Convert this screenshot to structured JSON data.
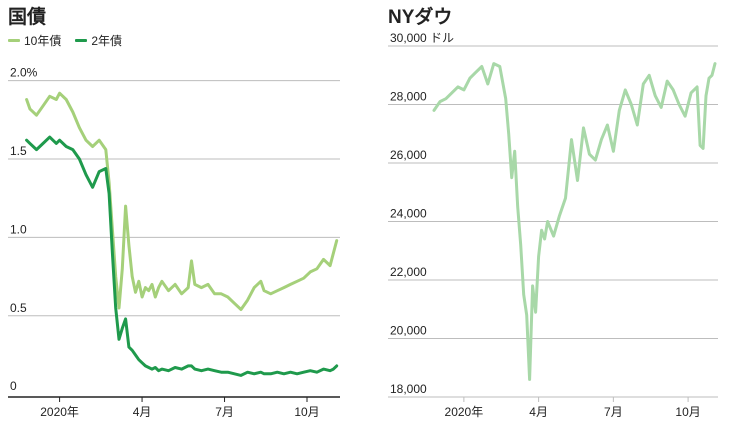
{
  "colors": {
    "yield10": "#a5d07a",
    "yield2": "#1f9a4c",
    "dow": "#a8d8a8",
    "grid": "#bdbdbd",
    "axis": "#222222"
  },
  "chart_data": [
    {
      "type": "line",
      "title": "国債",
      "xlabel": "",
      "ylabel": "",
      "y_tick_labels": [
        "0",
        "0.5",
        "1.0",
        "1.5",
        "2.0%"
      ],
      "y_ticks": [
        0,
        0.5,
        1.0,
        1.5,
        2.0
      ],
      "ylim": [
        -0.05,
        2.1
      ],
      "x_tick_labels": [
        "2020年",
        "4月",
        "7月",
        "10月"
      ],
      "x_ticks": [
        2020.0,
        2020.25,
        2020.5,
        2020.75
      ],
      "xlim": [
        2019.88,
        2020.85
      ],
      "grid": true,
      "legend_position": "top-left",
      "series": [
        {
          "name": "10年債",
          "color_key": "yield10",
          "x": [
            2019.9,
            2019.91,
            2019.93,
            2019.95,
            2019.97,
            2019.99,
            2020.0,
            2020.02,
            2020.04,
            2020.06,
            2020.08,
            2020.1,
            2020.12,
            2020.14,
            2020.15,
            2020.16,
            2020.17,
            2020.18,
            2020.19,
            2020.2,
            2020.21,
            2020.22,
            2020.23,
            2020.24,
            2020.25,
            2020.26,
            2020.27,
            2020.28,
            2020.29,
            2020.3,
            2020.31,
            2020.33,
            2020.35,
            2020.37,
            2020.39,
            2020.4,
            2020.41,
            2020.43,
            2020.45,
            2020.47,
            2020.49,
            2020.51,
            2020.53,
            2020.55,
            2020.57,
            2020.59,
            2020.61,
            2020.62,
            2020.64,
            2020.66,
            2020.68,
            2020.7,
            2020.72,
            2020.74,
            2020.76,
            2020.78,
            2020.8,
            2020.82,
            2020.83,
            2020.84
          ],
          "values": [
            1.88,
            1.82,
            1.78,
            1.84,
            1.9,
            1.88,
            1.92,
            1.88,
            1.8,
            1.7,
            1.62,
            1.58,
            1.62,
            1.56,
            1.35,
            1.05,
            0.75,
            0.55,
            0.8,
            1.2,
            0.95,
            0.75,
            0.65,
            0.72,
            0.62,
            0.68,
            0.66,
            0.7,
            0.62,
            0.68,
            0.72,
            0.66,
            0.7,
            0.64,
            0.68,
            0.85,
            0.7,
            0.68,
            0.7,
            0.64,
            0.64,
            0.62,
            0.58,
            0.54,
            0.6,
            0.68,
            0.72,
            0.66,
            0.64,
            0.66,
            0.68,
            0.7,
            0.72,
            0.74,
            0.78,
            0.8,
            0.86,
            0.82,
            0.9,
            0.98
          ]
        },
        {
          "name": "2年債",
          "color_key": "yield2",
          "x": [
            2019.9,
            2019.91,
            2019.93,
            2019.95,
            2019.97,
            2019.99,
            2020.0,
            2020.02,
            2020.04,
            2020.06,
            2020.08,
            2020.1,
            2020.12,
            2020.14,
            2020.15,
            2020.16,
            2020.17,
            2020.18,
            2020.19,
            2020.2,
            2020.21,
            2020.22,
            2020.23,
            2020.24,
            2020.25,
            2020.26,
            2020.27,
            2020.28,
            2020.29,
            2020.3,
            2020.31,
            2020.33,
            2020.35,
            2020.37,
            2020.39,
            2020.4,
            2020.41,
            2020.43,
            2020.45,
            2020.47,
            2020.49,
            2020.51,
            2020.53,
            2020.55,
            2020.57,
            2020.59,
            2020.61,
            2020.62,
            2020.64,
            2020.66,
            2020.68,
            2020.7,
            2020.72,
            2020.74,
            2020.76,
            2020.78,
            2020.8,
            2020.82,
            2020.83,
            2020.84
          ],
          "values": [
            1.62,
            1.6,
            1.56,
            1.6,
            1.64,
            1.6,
            1.62,
            1.58,
            1.56,
            1.5,
            1.4,
            1.32,
            1.42,
            1.44,
            1.28,
            0.9,
            0.55,
            0.35,
            0.42,
            0.48,
            0.3,
            0.28,
            0.25,
            0.22,
            0.2,
            0.18,
            0.17,
            0.16,
            0.17,
            0.15,
            0.16,
            0.15,
            0.17,
            0.16,
            0.18,
            0.18,
            0.16,
            0.15,
            0.16,
            0.15,
            0.14,
            0.14,
            0.13,
            0.12,
            0.14,
            0.13,
            0.14,
            0.13,
            0.13,
            0.14,
            0.13,
            0.14,
            0.13,
            0.14,
            0.15,
            0.14,
            0.16,
            0.15,
            0.16,
            0.18
          ]
        }
      ]
    },
    {
      "type": "line",
      "title": "NYダウ",
      "xlabel": "",
      "ylabel": "",
      "y_tick_labels": [
        "18,000",
        "20,000",
        "22,000",
        "24,000",
        "26,000",
        "28,000",
        "30,000 ドル"
      ],
      "y_ticks": [
        18000,
        20000,
        22000,
        24000,
        26000,
        28000,
        30000
      ],
      "ylim": [
        18000,
        30000
      ],
      "x_tick_labels": [
        "2020年",
        "4月",
        "7月",
        "10月"
      ],
      "x_ticks": [
        2020.0,
        2020.25,
        2020.5,
        2020.75
      ],
      "xlim": [
        2019.88,
        2020.85
      ],
      "grid": true,
      "series": [
        {
          "name": "",
          "color_key": "dow",
          "x": [
            2019.9,
            2019.92,
            2019.94,
            2019.96,
            2019.98,
            2020.0,
            2020.02,
            2020.04,
            2020.06,
            2020.08,
            2020.1,
            2020.12,
            2020.14,
            2020.15,
            2020.16,
            2020.17,
            2020.18,
            2020.19,
            2020.2,
            2020.21,
            2020.22,
            2020.23,
            2020.24,
            2020.25,
            2020.26,
            2020.27,
            2020.28,
            2020.3,
            2020.32,
            2020.34,
            2020.36,
            2020.38,
            2020.4,
            2020.42,
            2020.44,
            2020.46,
            2020.48,
            2020.5,
            2020.52,
            2020.54,
            2020.56,
            2020.58,
            2020.6,
            2020.62,
            2020.64,
            2020.66,
            2020.68,
            2020.7,
            2020.72,
            2020.74,
            2020.76,
            2020.78,
            2020.79,
            2020.8,
            2020.81,
            2020.82,
            2020.83,
            2020.84
          ],
          "values": [
            27800,
            28100,
            28200,
            28400,
            28600,
            28500,
            28900,
            29100,
            29300,
            28700,
            29400,
            29300,
            28200,
            27000,
            25500,
            26400,
            24500,
            23200,
            21500,
            20800,
            18600,
            21800,
            20900,
            22800,
            23700,
            23400,
            24000,
            23500,
            24200,
            24800,
            26800,
            25400,
            27200,
            26300,
            26100,
            26800,
            27300,
            26400,
            27800,
            28500,
            28000,
            27300,
            28700,
            29000,
            28300,
            27900,
            28800,
            28500,
            28000,
            27600,
            28400,
            28600,
            26600,
            26500,
            28300,
            28900,
            29000,
            29400
          ]
        }
      ]
    }
  ]
}
